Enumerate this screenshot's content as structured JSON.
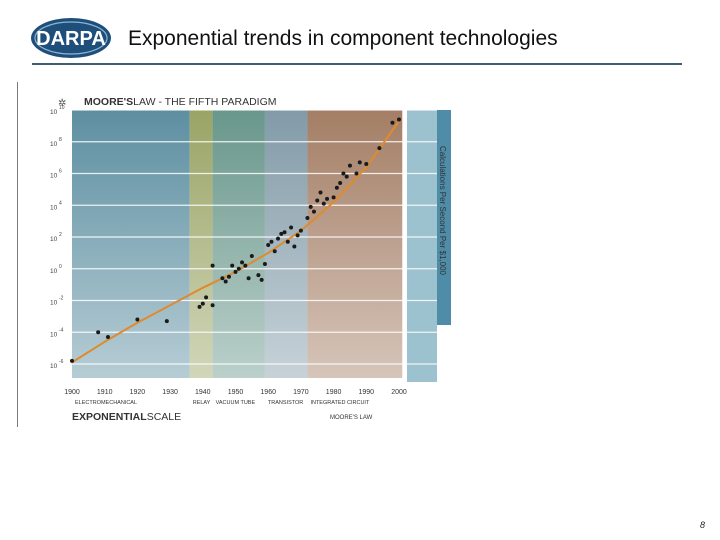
{
  "slide": {
    "title": "Exponential trends in component technologies",
    "page_number": "8",
    "logo_text": "DARPA"
  },
  "colors": {
    "title_rule": "#3d5f70",
    "trend_line": "#e08a2e",
    "points": "#1a1a1a",
    "era_electromechanical": "#2f6f86",
    "era_relay": "#7d8a3a",
    "era_vacuum_tube": "#3f7a6a",
    "era_transistor": "#5f7f8f",
    "era_integrated_circuit": "#8b5a3a"
  },
  "chart_data": {
    "type": "scatter",
    "title_bold": "MOORE'S",
    "title_rest": "LAW - THE FIFTH PARADIGM",
    "bottom_title_bold": "EXPONENTIAL",
    "bottom_title_rest": "SCALE",
    "footer_right": "MOORE'S LAW",
    "ylabel": "Calculations Per Second Per $1,000",
    "y_scale": "log",
    "x_ticks": [
      "1900",
      "1910",
      "1920",
      "1930",
      "1940",
      "1950",
      "1960",
      "1970",
      "1980",
      "1990",
      "2000"
    ],
    "y_tick_exponents": [
      "10",
      "8",
      "6",
      "4",
      "2",
      "0",
      "-2",
      "-4",
      "-6"
    ],
    "xlim": [
      1900,
      2000
    ],
    "ylim_exponent": [
      -6,
      10
    ],
    "eras": [
      {
        "label": "ELECTROMECHANICAL",
        "start": 1900,
        "end": 1936
      },
      {
        "label": "RELAY",
        "start": 1936,
        "end": 1943
      },
      {
        "label": "VACUUM TUBE",
        "start": 1943,
        "end": 1959
      },
      {
        "label": "TRANSISTOR",
        "start": 1959,
        "end": 1972
      },
      {
        "label": "INTEGRATED CIRCUIT",
        "start": 1972,
        "end": 2001
      }
    ],
    "points": [
      [
        1900,
        -5.8
      ],
      [
        1908,
        -4.0
      ],
      [
        1911,
        -4.3
      ],
      [
        1920,
        -3.2
      ],
      [
        1929,
        -3.3
      ],
      [
        1939,
        -2.4
      ],
      [
        1940,
        -2.2
      ],
      [
        1941,
        -1.8
      ],
      [
        1943,
        -2.3
      ],
      [
        1943,
        0.2
      ],
      [
        1946,
        -0.6
      ],
      [
        1947,
        -0.8
      ],
      [
        1948,
        -0.5
      ],
      [
        1949,
        0.2
      ],
      [
        1950,
        -0.2
      ],
      [
        1951,
        0.0
      ],
      [
        1952,
        0.4
      ],
      [
        1953,
        0.2
      ],
      [
        1954,
        -0.6
      ],
      [
        1955,
        0.8
      ],
      [
        1957,
        -0.4
      ],
      [
        1958,
        -0.7
      ],
      [
        1959,
        0.3
      ],
      [
        1960,
        1.5
      ],
      [
        1961,
        1.7
      ],
      [
        1962,
        1.1
      ],
      [
        1963,
        1.9
      ],
      [
        1964,
        2.2
      ],
      [
        1965,
        2.3
      ],
      [
        1966,
        1.7
      ],
      [
        1967,
        2.6
      ],
      [
        1968,
        1.4
      ],
      [
        1969,
        2.1
      ],
      [
        1970,
        2.4
      ],
      [
        1972,
        3.2
      ],
      [
        1973,
        3.9
      ],
      [
        1974,
        3.6
      ],
      [
        1975,
        4.3
      ],
      [
        1976,
        4.8
      ],
      [
        1977,
        4.1
      ],
      [
        1978,
        4.4
      ],
      [
        1980,
        4.5
      ],
      [
        1981,
        5.1
      ],
      [
        1982,
        5.4
      ],
      [
        1983,
        6.0
      ],
      [
        1984,
        5.8
      ],
      [
        1985,
        6.5
      ],
      [
        1987,
        6.0
      ],
      [
        1988,
        6.7
      ],
      [
        1990,
        6.6
      ],
      [
        1994,
        7.6
      ],
      [
        1998,
        9.2
      ],
      [
        2000,
        9.4
      ]
    ],
    "trend": [
      [
        1900,
        -5.9
      ],
      [
        1910,
        -4.6
      ],
      [
        1920,
        -3.4
      ],
      [
        1930,
        -2.3
      ],
      [
        1940,
        -1.2
      ],
      [
        1950,
        -0.2
      ],
      [
        1960,
        1.0
      ],
      [
        1970,
        2.4
      ],
      [
        1980,
        4.2
      ],
      [
        1990,
        6.4
      ],
      [
        2000,
        9.3
      ]
    ]
  }
}
